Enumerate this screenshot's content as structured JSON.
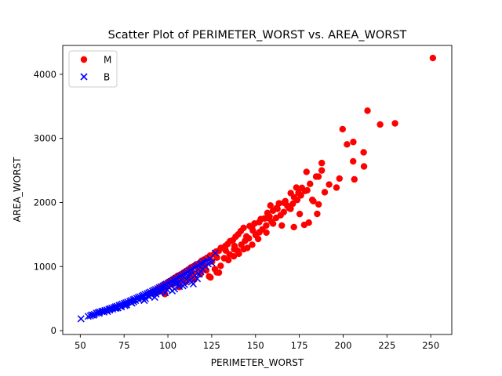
{
  "chart_data": {
    "type": "scatter",
    "title": "Scatter Plot of PERIMETER_WORST vs. AREA_WORST",
    "xlabel": "PERIMETER_WORST",
    "ylabel": "AREA_WORST",
    "xlim": [
      40,
      262
    ],
    "ylim": [
      -60,
      4450
    ],
    "xticks": [
      50,
      75,
      100,
      125,
      150,
      175,
      200,
      225,
      250
    ],
    "yticks": [
      0,
      1000,
      2000,
      3000,
      4000
    ],
    "grid": false,
    "legend_position": "top-left",
    "series": [
      {
        "name": "M",
        "color": "#ff0000",
        "marker": "circle",
        "points": [
          [
            251.2,
            4254
          ],
          [
            213.9,
            3432
          ],
          [
            221.1,
            3216
          ],
          [
            229.6,
            3234
          ],
          [
            199.7,
            3143
          ],
          [
            205.8,
            2944
          ],
          [
            202.2,
            2906
          ],
          [
            211.7,
            2782
          ],
          [
            205.7,
            2642
          ],
          [
            211.9,
            2562
          ],
          [
            206.4,
            2360
          ],
          [
            187.8,
            2615
          ],
          [
            187.8,
            2499
          ],
          [
            185.9,
            2403
          ],
          [
            184.6,
            2403
          ],
          [
            179.1,
            2477
          ],
          [
            196.2,
            2232
          ],
          [
            197.9,
            2373
          ],
          [
            173.3,
            2232
          ],
          [
            176.5,
            2227
          ],
          [
            170.1,
            2145
          ],
          [
            172.0,
            2081
          ],
          [
            168.2,
            1946
          ],
          [
            163.4,
            1987
          ],
          [
            166.3,
            1994
          ],
          [
            162.0,
            1911
          ],
          [
            158.5,
            1952
          ],
          [
            160.0,
            1872
          ],
          [
            156.8,
            1837
          ],
          [
            157.1,
            1757
          ],
          [
            155.1,
            1749
          ],
          [
            152.1,
            1693
          ],
          [
            149.4,
            1671
          ],
          [
            148.0,
            1601
          ],
          [
            146.7,
            1632
          ],
          [
            143.2,
            1603
          ],
          [
            141.6,
            1553
          ],
          [
            140.1,
            1502
          ],
          [
            138.6,
            1464
          ],
          [
            137.1,
            1412
          ],
          [
            135.4,
            1395
          ],
          [
            134.1,
            1351
          ],
          [
            132.8,
            1321
          ],
          [
            130.2,
            1290
          ],
          [
            129.0,
            1245
          ],
          [
            127.5,
            1233
          ],
          [
            126.3,
            1195
          ],
          [
            124.0,
            1170
          ],
          [
            122.3,
            1136
          ],
          [
            120.5,
            1108
          ],
          [
            119.2,
            1089
          ],
          [
            117.6,
            1045
          ],
          [
            116.1,
            1033
          ],
          [
            114.7,
            1005
          ],
          [
            113.1,
            985
          ],
          [
            111.6,
            951
          ],
          [
            110.3,
            931
          ],
          [
            108.8,
            903
          ],
          [
            107.2,
            875
          ],
          [
            105.6,
            856
          ],
          [
            104.0,
            827
          ],
          [
            102.6,
            800
          ],
          [
            101.1,
            774
          ],
          [
            99.5,
            742
          ],
          [
            97.9,
            718
          ],
          [
            96.3,
            690
          ],
          [
            94.8,
            663
          ],
          [
            93.4,
            636
          ],
          [
            91.8,
            610
          ],
          [
            90.2,
            588
          ],
          [
            98.3,
            570
          ],
          [
            106.5,
            680
          ],
          [
            110.2,
            760
          ],
          [
            115.1,
            800
          ],
          [
            118.5,
            880
          ],
          [
            121.9,
            940
          ],
          [
            124.3,
            830
          ],
          [
            126.8,
            960
          ],
          [
            129.1,
            905
          ],
          [
            132.1,
            1130
          ],
          [
            135.2,
            1190
          ],
          [
            137.8,
            1270
          ],
          [
            139.6,
            1250
          ],
          [
            141.9,
            1340
          ],
          [
            144.0,
            1400
          ],
          [
            146.2,
            1440
          ],
          [
            150.1,
            1490
          ],
          [
            152.2,
            1535
          ],
          [
            153.9,
            1580
          ],
          [
            156.1,
            1640
          ],
          [
            159.2,
            1700
          ],
          [
            161.8,
            1760
          ],
          [
            164.3,
            1800
          ],
          [
            166.1,
            1850
          ],
          [
            169.2,
            1910
          ],
          [
            171.3,
            1980
          ],
          [
            173.8,
            2040
          ],
          [
            175.9,
            2110
          ],
          [
            178.2,
            2180
          ],
          [
            181.1,
            2290
          ],
          [
            183.0,
            2020
          ],
          [
            186.0,
            1970
          ],
          [
            175.2,
            1820
          ],
          [
            171.9,
            1615
          ],
          [
            180.4,
            1685
          ],
          [
            185.2,
            1822
          ],
          [
            177.8,
            1650
          ],
          [
            165.0,
            1640
          ],
          [
            160.0,
            1670
          ],
          [
            156.2,
            1530
          ],
          [
            151.5,
            1430
          ],
          [
            148.1,
            1340
          ],
          [
            145.3,
            1290
          ],
          [
            143.2,
            1270
          ],
          [
            140.5,
            1200
          ],
          [
            137.6,
            1160
          ],
          [
            134.5,
            1100
          ],
          [
            130.1,
            1010
          ],
          [
            127.9,
            910
          ],
          [
            123.5,
            845
          ],
          [
            120.2,
            950
          ],
          [
            117.3,
            920
          ],
          [
            114.1,
            880
          ],
          [
            112.0,
            820
          ],
          [
            109.3,
            790
          ],
          [
            106.2,
            760
          ],
          [
            102.4,
            720
          ],
          [
            99.8,
            690
          ],
          [
            97.1,
            650
          ],
          [
            95.0,
            610
          ],
          [
            153.0,
            1740
          ],
          [
            158.0,
            1780
          ],
          [
            162.5,
            1900
          ],
          [
            167.0,
            2020
          ],
          [
            174.5,
            2150
          ],
          [
            182.4,
            2040
          ],
          [
            179.5,
            2190
          ],
          [
            189.5,
            2160
          ],
          [
            192.0,
            2280
          ],
          [
            170.0,
            1900
          ],
          [
            148.5,
            1560
          ],
          [
            144.8,
            1470
          ],
          [
            138.0,
            1320
          ],
          [
            133.0,
            1250
          ],
          [
            128.0,
            1140
          ],
          [
            125.2,
            1080
          ],
          [
            121.0,
            1010
          ],
          [
            118.0,
            970
          ],
          [
            113.6,
            900
          ],
          [
            108.0,
            850
          ],
          [
            104.5,
            790
          ],
          [
            101.0,
            760
          ],
          [
            96.5,
            640
          ],
          [
            93.0,
            600
          ],
          [
            91.0,
            580
          ]
        ]
      },
      {
        "name": "B",
        "color": "#0000ff",
        "marker": "x",
        "points": [
          [
            50.4,
            185
          ],
          [
            54.5,
            223
          ],
          [
            56.5,
            246
          ],
          [
            58.1,
            255
          ],
          [
            59.2,
            272
          ],
          [
            60.1,
            281
          ],
          [
            61.0,
            292
          ],
          [
            62.2,
            298
          ],
          [
            63.0,
            306
          ],
          [
            64.1,
            315
          ],
          [
            65.2,
            322
          ],
          [
            66.3,
            334
          ],
          [
            67.1,
            341
          ],
          [
            68.0,
            352
          ],
          [
            69.2,
            362
          ],
          [
            70.1,
            372
          ],
          [
            71.0,
            381
          ],
          [
            72.2,
            393
          ],
          [
            73.1,
            402
          ],
          [
            74.0,
            415
          ],
          [
            75.2,
            425
          ],
          [
            76.1,
            435
          ],
          [
            77.0,
            447
          ],
          [
            78.3,
            458
          ],
          [
            79.1,
            470
          ],
          [
            80.2,
            482
          ],
          [
            81.0,
            494
          ],
          [
            82.2,
            505
          ],
          [
            83.1,
            517
          ],
          [
            84.0,
            528
          ],
          [
            85.2,
            540
          ],
          [
            86.1,
            552
          ],
          [
            87.0,
            566
          ],
          [
            88.2,
            578
          ],
          [
            89.1,
            590
          ],
          [
            90.0,
            602
          ],
          [
            91.2,
            616
          ],
          [
            92.1,
            630
          ],
          [
            93.0,
            642
          ],
          [
            94.2,
            655
          ],
          [
            95.1,
            670
          ],
          [
            96.0,
            684
          ],
          [
            97.2,
            698
          ],
          [
            98.1,
            712
          ],
          [
            99.0,
            727
          ],
          [
            100.2,
            741
          ],
          [
            101.1,
            756
          ],
          [
            102.0,
            771
          ],
          [
            103.2,
            786
          ],
          [
            104.1,
            801
          ],
          [
            105.0,
            817
          ],
          [
            106.2,
            832
          ],
          [
            107.1,
            848
          ],
          [
            108.0,
            864
          ],
          [
            109.2,
            880
          ],
          [
            110.1,
            897
          ],
          [
            111.0,
            913
          ],
          [
            112.2,
            930
          ],
          [
            113.1,
            947
          ],
          [
            114.0,
            964
          ],
          [
            115.2,
            982
          ],
          [
            116.1,
            1000
          ],
          [
            117.0,
            1018
          ],
          [
            118.2,
            1036
          ],
          [
            119.1,
            1054
          ],
          [
            120.5,
            1072
          ],
          [
            122.0,
            1096
          ],
          [
            124.1,
            1125
          ],
          [
            127.0,
            1210
          ],
          [
            65.5,
            300
          ],
          [
            70.5,
            350
          ],
          [
            75.5,
            390
          ],
          [
            80.5,
            450
          ],
          [
            85.5,
            510
          ],
          [
            90.5,
            560
          ],
          [
            95.5,
            620
          ],
          [
            100.5,
            680
          ],
          [
            105.5,
            740
          ],
          [
            110.5,
            800
          ],
          [
            115.5,
            860
          ],
          [
            118.8,
            920
          ],
          [
            86.5,
            470
          ],
          [
            92.5,
            520
          ],
          [
            98.5,
            590
          ],
          [
            103.8,
            650
          ],
          [
            108.5,
            700
          ],
          [
            113.5,
            760
          ],
          [
            116.8,
            810
          ],
          [
            114.5,
            728
          ],
          [
            112.8,
            870
          ],
          [
            111.2,
            860
          ],
          [
            107.8,
            790
          ],
          [
            104.2,
            735
          ],
          [
            101.8,
            700
          ],
          [
            97.8,
            665
          ],
          [
            94.5,
            615
          ],
          [
            91.8,
            585
          ],
          [
            88.5,
            545
          ],
          [
            84.8,
            505
          ],
          [
            81.5,
            470
          ],
          [
            78.8,
            440
          ],
          [
            75.8,
            410
          ],
          [
            72.5,
            380
          ],
          [
            69.8,
            350
          ],
          [
            66.8,
            320
          ],
          [
            63.5,
            290
          ],
          [
            60.8,
            270
          ],
          [
            57.5,
            240
          ],
          [
            55.8,
            230
          ],
          [
            106.5,
            690
          ],
          [
            109.5,
            720
          ],
          [
            112.5,
            780
          ],
          [
            117.8,
            880
          ],
          [
            119.8,
            960
          ],
          [
            121.5,
            1000
          ],
          [
            123.0,
            1040
          ],
          [
            125.0,
            1060
          ],
          [
            102.5,
            620
          ],
          [
            99.5,
            640
          ],
          [
            96.2,
            600
          ],
          [
            93.2,
            570
          ],
          [
            89.5,
            530
          ],
          [
            87.2,
            500
          ],
          [
            83.5,
            480
          ],
          [
            79.5,
            430
          ],
          [
            76.5,
            400
          ],
          [
            73.5,
            370
          ],
          [
            71.5,
            355
          ],
          [
            68.5,
            335
          ]
        ]
      }
    ]
  }
}
